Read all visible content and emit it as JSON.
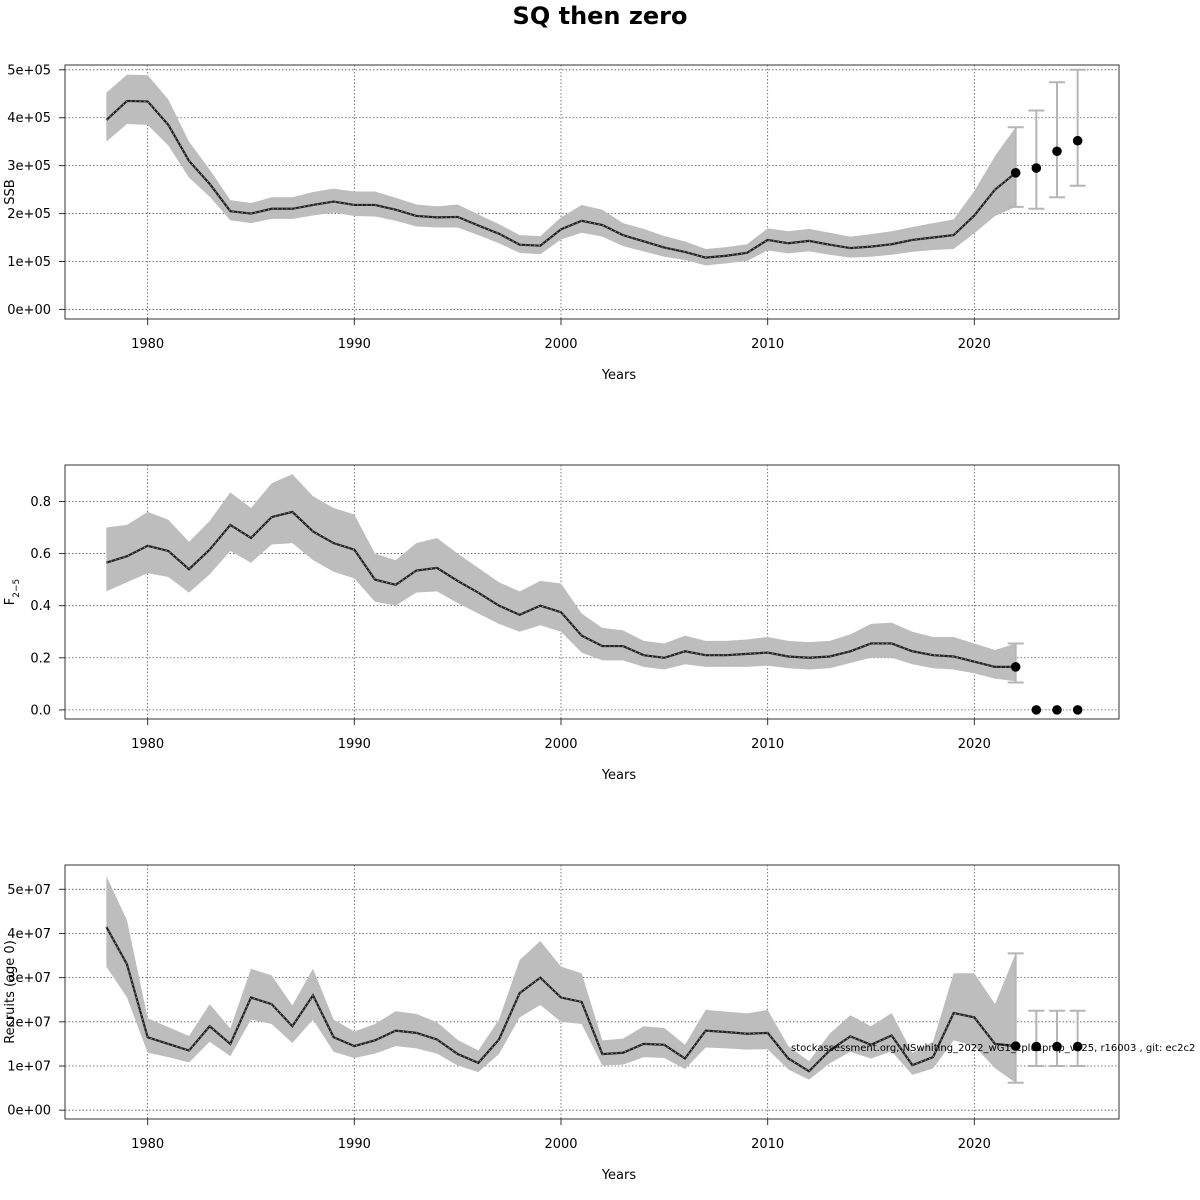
{
  "title": "SQ then zero",
  "footnote": "stockassessment.org, NSwhiting_2022_wG1_cplusprop_vF25, r16003 , git: ec2c2",
  "chart_data": [
    {
      "type": "line",
      "panel": "ssb",
      "ylabel": "SSB",
      "xlabel": "Years",
      "xlim": [
        1976,
        2027
      ],
      "ylim": [
        -20000,
        510000
      ],
      "xticks": [
        1980,
        1990,
        2000,
        2010,
        2020
      ],
      "xtick_labels": [
        "1980",
        "1990",
        "2000",
        "2010",
        "2020"
      ],
      "yticks": [
        0,
        100000,
        200000,
        300000,
        400000,
        500000
      ],
      "ytick_labels": [
        "0e+00",
        "1e+05",
        "2e+05",
        "3e+05",
        "4e+05",
        "5e+05"
      ],
      "grid": true,
      "years": [
        1978,
        1979,
        1980,
        1981,
        1982,
        1983,
        1984,
        1985,
        1986,
        1987,
        1988,
        1989,
        1990,
        1991,
        1992,
        1993,
        1994,
        1995,
        1996,
        1997,
        1998,
        1999,
        2000,
        2001,
        2002,
        2003,
        2004,
        2005,
        2006,
        2007,
        2008,
        2009,
        2010,
        2011,
        2012,
        2013,
        2014,
        2015,
        2016,
        2017,
        2018,
        2019,
        2020,
        2021,
        2022
      ],
      "estimate": [
        395000,
        435000,
        434000,
        385000,
        310000,
        262000,
        205000,
        200000,
        210000,
        210000,
        218000,
        225000,
        218000,
        218000,
        208000,
        195000,
        192000,
        193000,
        175000,
        158000,
        135000,
        133000,
        167000,
        185000,
        176000,
        155000,
        142000,
        129000,
        120000,
        108000,
        112000,
        118000,
        145000,
        138000,
        143000,
        135000,
        128000,
        131000,
        136000,
        145000,
        150000,
        155000,
        196000,
        250000,
        285000
      ],
      "lower": [
        350000,
        387000,
        385000,
        342000,
        275000,
        235000,
        186000,
        180000,
        189000,
        189000,
        196000,
        202000,
        195000,
        194000,
        185000,
        173000,
        171000,
        171000,
        155000,
        138000,
        118000,
        115000,
        146000,
        160000,
        152000,
        132000,
        121000,
        110000,
        103000,
        92000,
        96000,
        101000,
        123000,
        117000,
        121000,
        114000,
        108000,
        110000,
        114000,
        120000,
        124000,
        126000,
        159000,
        195000,
        214000
      ],
      "upper": [
        452000,
        490000,
        489000,
        438000,
        350000,
        292000,
        228000,
        222000,
        234000,
        234000,
        245000,
        252000,
        246000,
        246000,
        233000,
        219000,
        215000,
        219000,
        198000,
        178000,
        155000,
        153000,
        192000,
        218000,
        208000,
        180000,
        168000,
        153000,
        142000,
        126000,
        130000,
        136000,
        169000,
        163000,
        168000,
        160000,
        152000,
        157000,
        163000,
        172000,
        180000,
        188000,
        247000,
        320000,
        380000
      ],
      "projection": {
        "years": [
          2022,
          2023,
          2024,
          2025
        ],
        "values": [
          285000,
          295000,
          330000,
          352000
        ],
        "lower": [
          214000,
          210000,
          234000,
          258000
        ],
        "upper": [
          380000,
          415000,
          474000,
          500000
        ]
      }
    },
    {
      "type": "line",
      "panel": "fbar",
      "ylabel": "F",
      "ylabel_sub": "2−5",
      "xlabel": "Years",
      "xlim": [
        1976,
        2027
      ],
      "ylim": [
        -0.035,
        0.94
      ],
      "xticks": [
        1980,
        1990,
        2000,
        2010,
        2020
      ],
      "xtick_labels": [
        "1980",
        "1990",
        "2000",
        "2010",
        "2020"
      ],
      "yticks": [
        0,
        0.2,
        0.4,
        0.6,
        0.8
      ],
      "ytick_labels": [
        "0.0",
        "0.2",
        "0.4",
        "0.6",
        "0.8"
      ],
      "grid": true,
      "years": [
        1978,
        1979,
        1980,
        1981,
        1982,
        1983,
        1984,
        1985,
        1986,
        1987,
        1988,
        1989,
        1990,
        1991,
        1992,
        1993,
        1994,
        1995,
        1996,
        1997,
        1998,
        1999,
        2000,
        2001,
        2002,
        2003,
        2004,
        2005,
        2006,
        2007,
        2008,
        2009,
        2010,
        2011,
        2012,
        2013,
        2014,
        2015,
        2016,
        2017,
        2018,
        2019,
        2020,
        2021,
        2022
      ],
      "estimate": [
        0.565,
        0.59,
        0.63,
        0.61,
        0.54,
        0.615,
        0.71,
        0.66,
        0.74,
        0.76,
        0.685,
        0.64,
        0.615,
        0.5,
        0.48,
        0.535,
        0.545,
        0.495,
        0.45,
        0.4,
        0.365,
        0.4,
        0.375,
        0.285,
        0.245,
        0.245,
        0.21,
        0.2,
        0.225,
        0.21,
        0.21,
        0.215,
        0.22,
        0.205,
        0.2,
        0.205,
        0.225,
        0.255,
        0.255,
        0.225,
        0.21,
        0.205,
        0.185,
        0.165,
        0.165
      ],
      "lower": [
        0.455,
        0.49,
        0.525,
        0.51,
        0.45,
        0.52,
        0.61,
        0.565,
        0.635,
        0.64,
        0.575,
        0.53,
        0.505,
        0.415,
        0.4,
        0.45,
        0.455,
        0.41,
        0.37,
        0.33,
        0.3,
        0.325,
        0.3,
        0.22,
        0.19,
        0.19,
        0.165,
        0.155,
        0.175,
        0.165,
        0.165,
        0.165,
        0.17,
        0.16,
        0.155,
        0.16,
        0.18,
        0.2,
        0.2,
        0.175,
        0.16,
        0.155,
        0.14,
        0.12,
        0.11
      ],
      "upper": [
        0.7,
        0.71,
        0.76,
        0.73,
        0.645,
        0.725,
        0.835,
        0.775,
        0.87,
        0.905,
        0.82,
        0.775,
        0.75,
        0.6,
        0.575,
        0.64,
        0.66,
        0.6,
        0.545,
        0.49,
        0.455,
        0.495,
        0.485,
        0.37,
        0.315,
        0.305,
        0.265,
        0.255,
        0.285,
        0.265,
        0.265,
        0.27,
        0.28,
        0.265,
        0.26,
        0.265,
        0.29,
        0.33,
        0.335,
        0.3,
        0.28,
        0.28,
        0.255,
        0.23,
        0.255
      ],
      "projection": {
        "years": [
          2022,
          2023,
          2024,
          2025
        ],
        "values": [
          0.165,
          0.0,
          0.0,
          0.0
        ],
        "lower": [
          0.105,
          null,
          null,
          null
        ],
        "upper": [
          0.255,
          null,
          null,
          null
        ]
      }
    },
    {
      "type": "line",
      "panel": "recruits",
      "ylabel": "Recruits (age 0)",
      "xlabel": "Years",
      "xlim": [
        1976,
        2027
      ],
      "ylim": [
        -2000000,
        55500000
      ],
      "xticks": [
        1980,
        1990,
        2000,
        2010,
        2020
      ],
      "xtick_labels": [
        "1980",
        "1990",
        "2000",
        "2010",
        "2020"
      ],
      "yticks": [
        0,
        10000000,
        20000000,
        30000000,
        40000000,
        50000000
      ],
      "ytick_labels": [
        "0e+00",
        "1e+07",
        "2e+07",
        "3e+07",
        "4e+07",
        "5e+07"
      ],
      "grid": true,
      "years": [
        1978,
        1979,
        1980,
        1981,
        1982,
        1983,
        1984,
        1985,
        1986,
        1987,
        1988,
        1989,
        1990,
        1991,
        1992,
        1993,
        1994,
        1995,
        1996,
        1997,
        1998,
        1999,
        2000,
        2001,
        2002,
        2003,
        2004,
        2005,
        2006,
        2007,
        2008,
        2009,
        2010,
        2011,
        2012,
        2013,
        2014,
        2015,
        2016,
        2017,
        2018,
        2019,
        2020,
        2021,
        2022
      ],
      "estimate": [
        41500000,
        33000000,
        16500000,
        15000000,
        13500000,
        19000000,
        15000000,
        25500000,
        24000000,
        19000000,
        26000000,
        16500000,
        14500000,
        15800000,
        18000000,
        17500000,
        16000000,
        12700000,
        10700000,
        16000000,
        26500000,
        30000000,
        25500000,
        24500000,
        12700000,
        13000000,
        15000000,
        14800000,
        11700000,
        18000000,
        17700000,
        17300000,
        17500000,
        11700000,
        8800000,
        13500000,
        16700000,
        14800000,
        16900000,
        10200000,
        12000000,
        22000000,
        21000000,
        15000000,
        14500000
      ],
      "lower": [
        32500000,
        25500000,
        13000000,
        12000000,
        10800000,
        15500000,
        12200000,
        20500000,
        19500000,
        15200000,
        20500000,
        13200000,
        11800000,
        12800000,
        14500000,
        14000000,
        12800000,
        10100000,
        8600000,
        12700000,
        21000000,
        23800000,
        20000000,
        19500000,
        10100000,
        10300000,
        12000000,
        11800000,
        9300000,
        14200000,
        14000000,
        13700000,
        13800000,
        9200000,
        6900000,
        10600000,
        13200000,
        11700000,
        13300000,
        8000000,
        9400000,
        15800000,
        14500000,
        9500000,
        6200000
      ],
      "upper": [
        53000000,
        43000000,
        20800000,
        18800000,
        16800000,
        24000000,
        18500000,
        32000000,
        30500000,
        23700000,
        32000000,
        20500000,
        17800000,
        19500000,
        22400000,
        21800000,
        19900000,
        15900000,
        13500000,
        20500000,
        34000000,
        38300000,
        32500000,
        31000000,
        15800000,
        16200000,
        19000000,
        18600000,
        14800000,
        22700000,
        22300000,
        21900000,
        22700000,
        14500000,
        11100000,
        17300000,
        21500000,
        19000000,
        22000000,
        13000000,
        15500000,
        31000000,
        31000000,
        24000000,
        35500000
      ],
      "projection": {
        "years": [
          2022,
          2023,
          2024,
          2025
        ],
        "values": [
          14500000,
          14400000,
          14400000,
          14400000
        ],
        "lower": [
          6200000,
          10000000,
          10000000,
          10000000
        ],
        "upper": [
          35500000,
          22500000,
          22500000,
          22500000
        ]
      }
    }
  ]
}
